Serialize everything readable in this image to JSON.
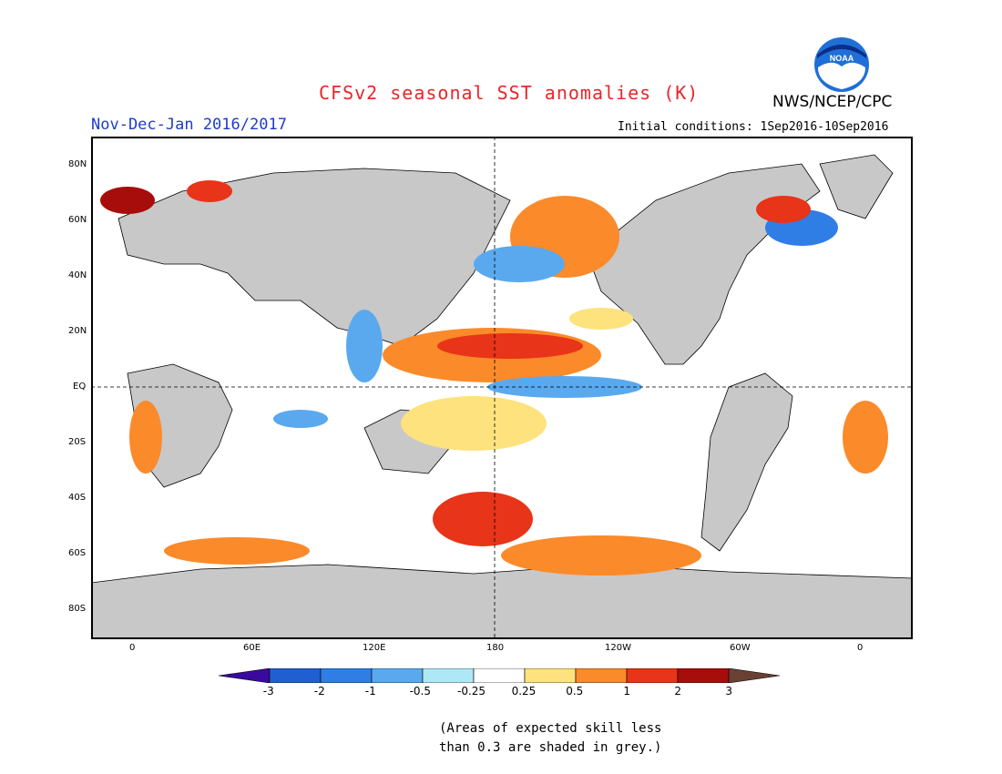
{
  "header": {
    "title": "CFSv2 seasonal SST anomalies (K)",
    "period": "Nov-Dec-Jan 2016/2017",
    "agency": "NWS/NCEP/CPC",
    "initial_conditions": "Initial conditions: 1Sep2016-10Sep2016",
    "logo_text": "NOAA",
    "logo_colors": {
      "outer": "#1f6fd6",
      "inner": "#0b2e8a",
      "gull": "#ffffff"
    }
  },
  "map": {
    "lat_labels": [
      "80N",
      "60N",
      "40N",
      "20N",
      "EQ",
      "20S",
      "40S",
      "60S",
      "80S"
    ],
    "lon_labels": [
      "0",
      "60E",
      "120E",
      "180",
      "120W",
      "60W",
      "0"
    ],
    "land_color": "#c8c8c8",
    "ocean_color": "#ffffff",
    "frame_color": "#000000"
  },
  "colorbar": {
    "tick_labels": [
      "-3",
      "-2",
      "-1",
      "-0.5",
      "-0.25",
      "0.25",
      "0.5",
      "1",
      "2",
      "3"
    ],
    "colors": [
      "#3a0a9e",
      "#1f5fd2",
      "#2f7ee6",
      "#5aa9ee",
      "#aee8f6",
      "#ffffff",
      "#fde27e",
      "#fb8a2a",
      "#e83418",
      "#a70d0a",
      "#6a4032"
    ]
  },
  "footnote": {
    "line1": "(Areas of expected skill less",
    "line2": "than 0.3 are shaded in grey.)"
  }
}
